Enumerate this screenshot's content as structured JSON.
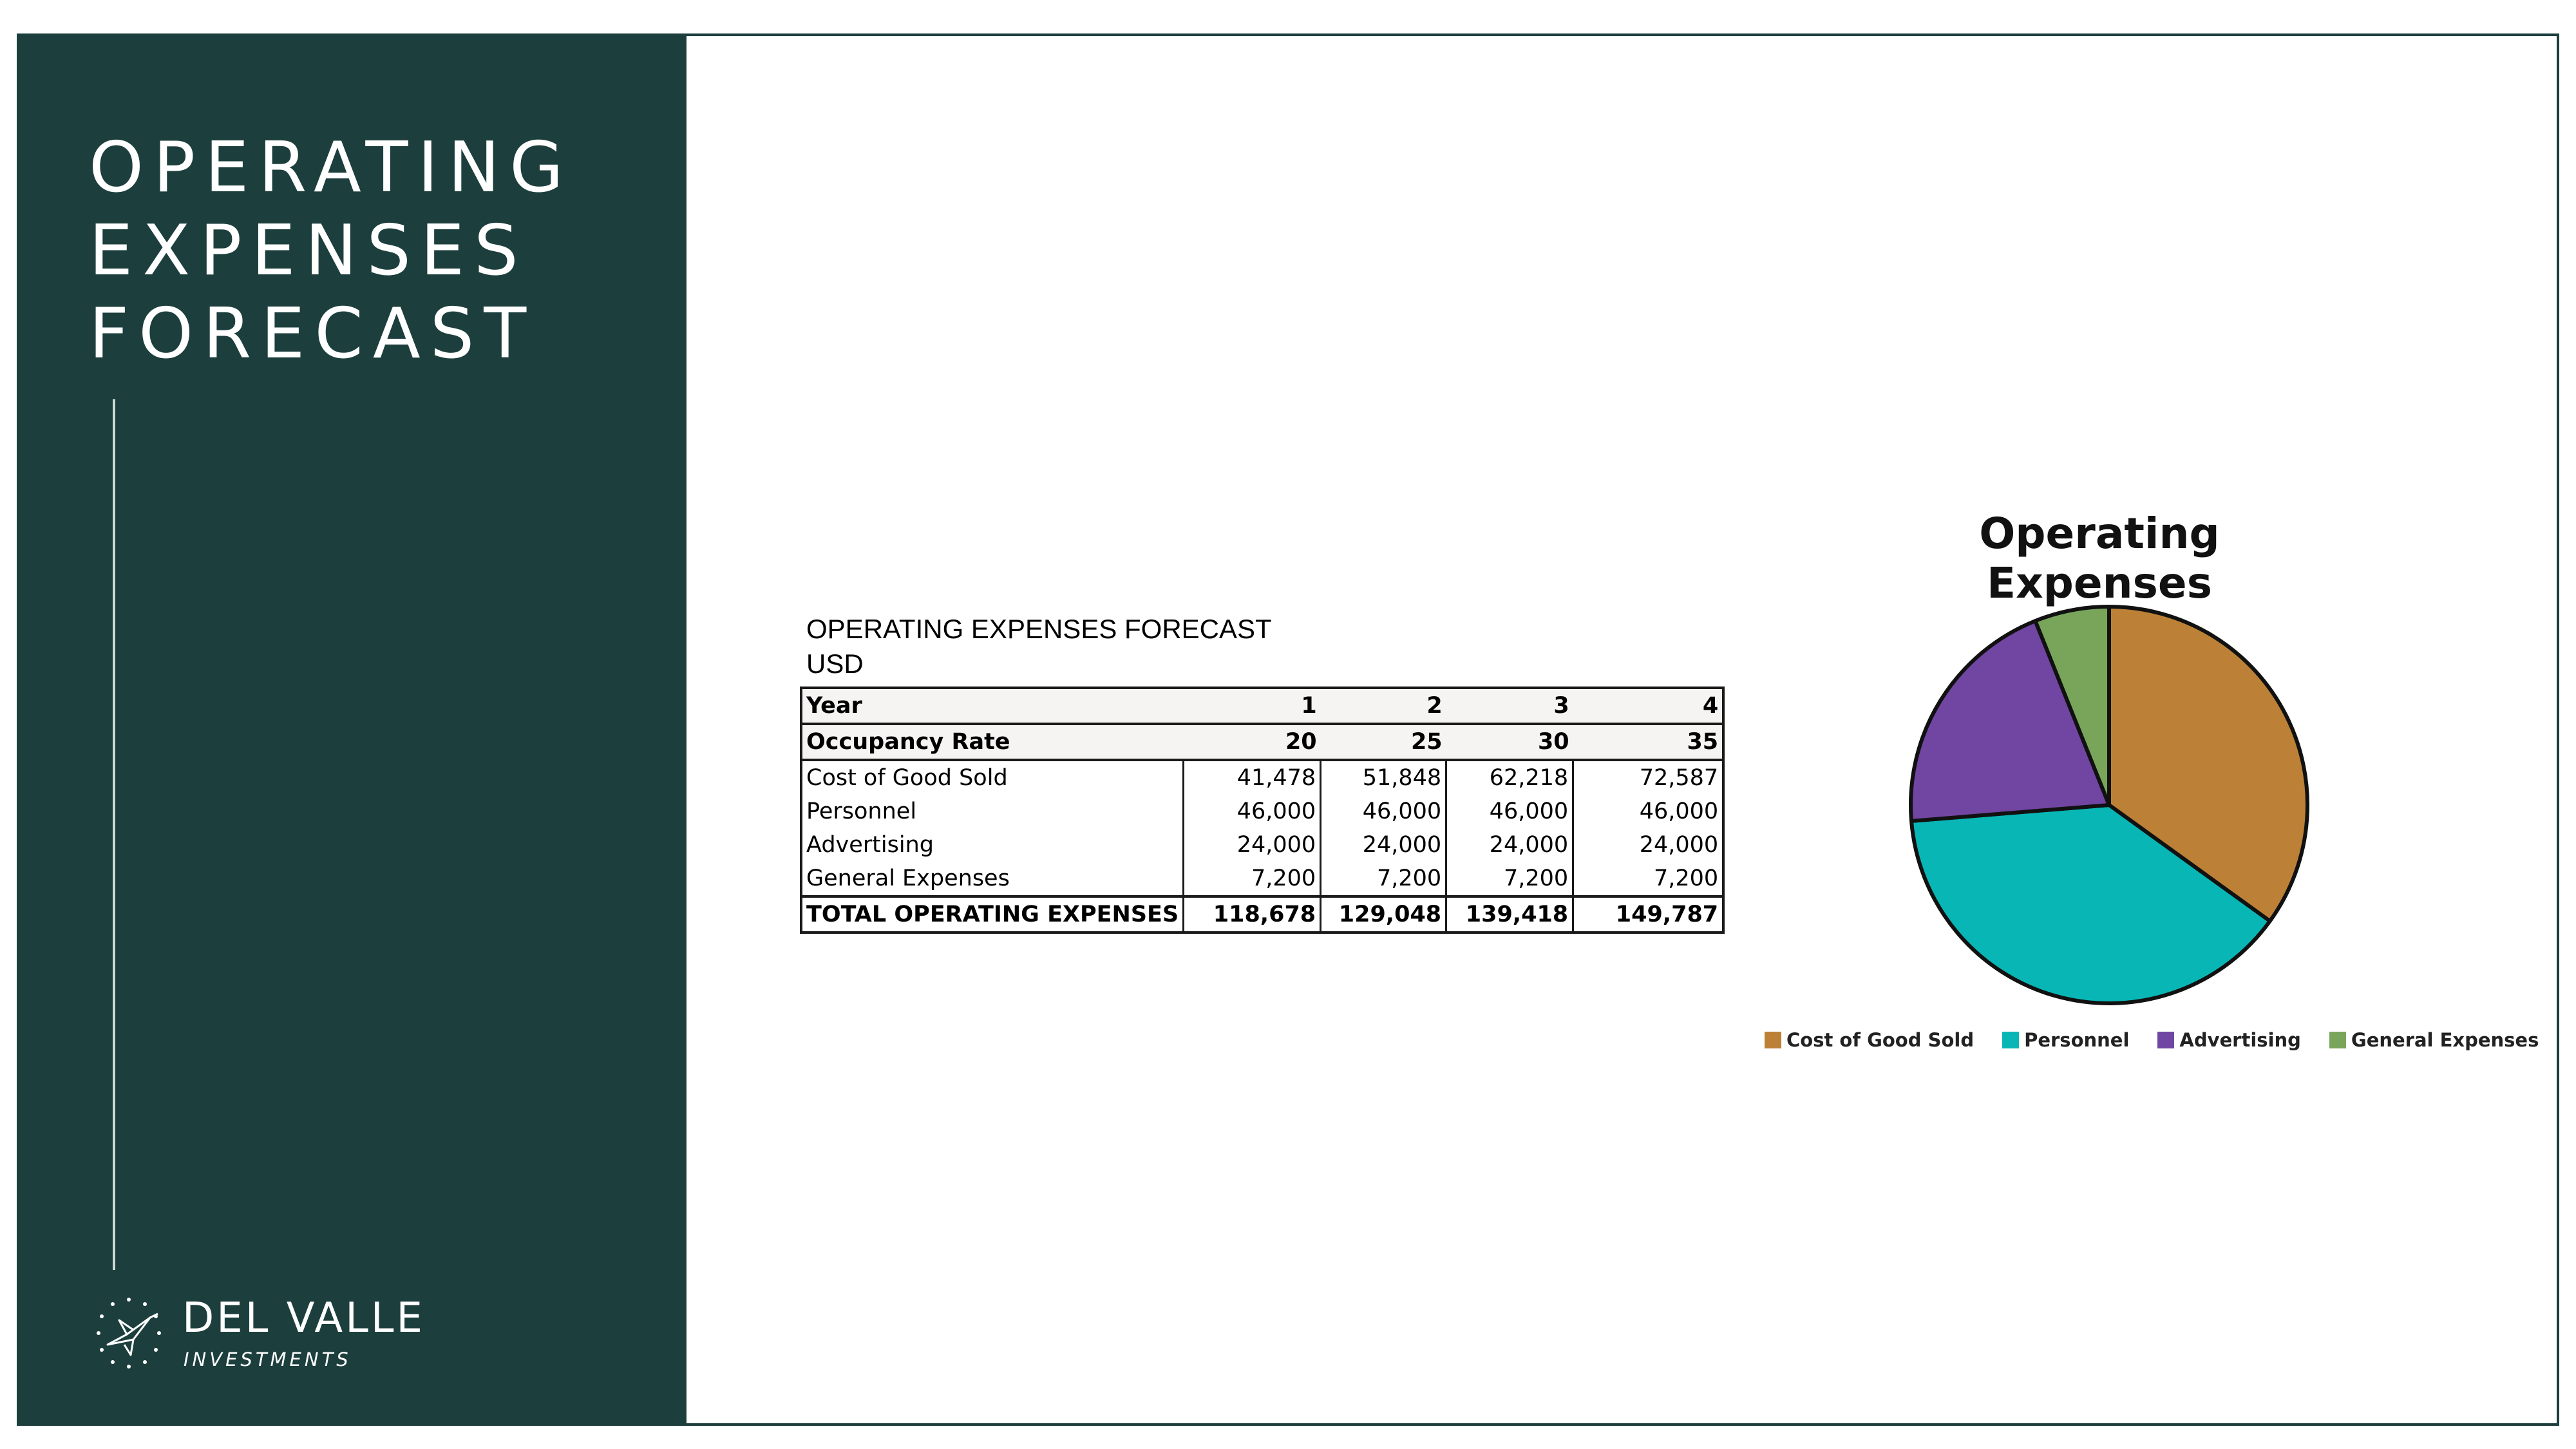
{
  "sidebar": {
    "title_lines": [
      "OPERATING",
      "EXPENSES",
      "FORECAST"
    ],
    "logo": {
      "name": "DEL VALLE",
      "subtitle": "INVESTMENTS",
      "icon": "hummingbird-icon"
    }
  },
  "table": {
    "title": "OPERATING EXPENSES FORECAST",
    "currency": "USD",
    "header_row": [
      "Year",
      "1",
      "2",
      "3",
      "4"
    ],
    "occupancy_row": [
      "Occupancy Rate",
      "20",
      "25",
      "30",
      "35"
    ],
    "rows": [
      [
        "Cost of Good Sold",
        "41,478",
        "51,848",
        "62,218",
        "72,587"
      ],
      [
        "Personnel",
        "46,000",
        "46,000",
        "46,000",
        "46,000"
      ],
      [
        "Advertising",
        "24,000",
        "24,000",
        "24,000",
        "24,000"
      ],
      [
        "General Expenses",
        "7,200",
        "7,200",
        "7,200",
        "7,200"
      ]
    ],
    "total_row": [
      "TOTAL OPERATING EXPENSES",
      "118,678",
      "129,048",
      "139,418",
      "149,787"
    ]
  },
  "chart_data": {
    "type": "pie",
    "title": "Operating Expenses",
    "categories": [
      "Cost of Good Sold",
      "Personnel",
      "Advertising",
      "General Expenses"
    ],
    "values": [
      41478,
      46000,
      24000,
      7200
    ],
    "colors": [
      "#bc8136",
      "#08b7b5",
      "#7046a2",
      "#79a55a"
    ],
    "legend_position": "bottom"
  }
}
